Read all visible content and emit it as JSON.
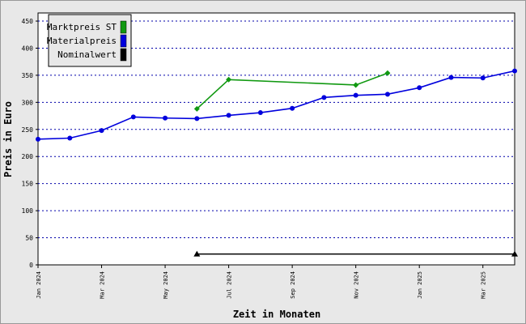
{
  "chart_data": {
    "type": "line",
    "xlabel": "Zeit in Monaten",
    "ylabel": "Preis in Euro",
    "categories": [
      "Jan 2024",
      null,
      "Mar 2024",
      null,
      "May 2024",
      null,
      "Jul 2024",
      null,
      "Sep 2024",
      null,
      "Nov 2024",
      null,
      "Jan 2025",
      null,
      "Mar 2025",
      null
    ],
    "series": [
      {
        "name": "Marktpreis ST",
        "color": "#119911",
        "marker": "diamond",
        "connect_gaps": true,
        "values": [
          null,
          null,
          null,
          null,
          null,
          288,
          342,
          null,
          null,
          null,
          332,
          354,
          null,
          null,
          null,
          null
        ]
      },
      {
        "name": "Materialpreis",
        "color": "#0000dd",
        "marker": "circle",
        "connect_gaps": true,
        "values": [
          232,
          234,
          248,
          273,
          271,
          270,
          276,
          281,
          289,
          309,
          313,
          315,
          327,
          346,
          345,
          358
        ]
      },
      {
        "name": "Nominalwert",
        "color": "#000000",
        "marker": "triangle",
        "connect_gaps": true,
        "values": [
          null,
          null,
          null,
          null,
          null,
          20,
          null,
          null,
          null,
          null,
          null,
          null,
          null,
          null,
          null,
          20
        ]
      }
    ],
    "ylim": [
      0,
      465
    ],
    "yticks": [
      0,
      50,
      100,
      150,
      200,
      250,
      300,
      350,
      400,
      450
    ],
    "grid": true,
    "legend": "upper left"
  }
}
